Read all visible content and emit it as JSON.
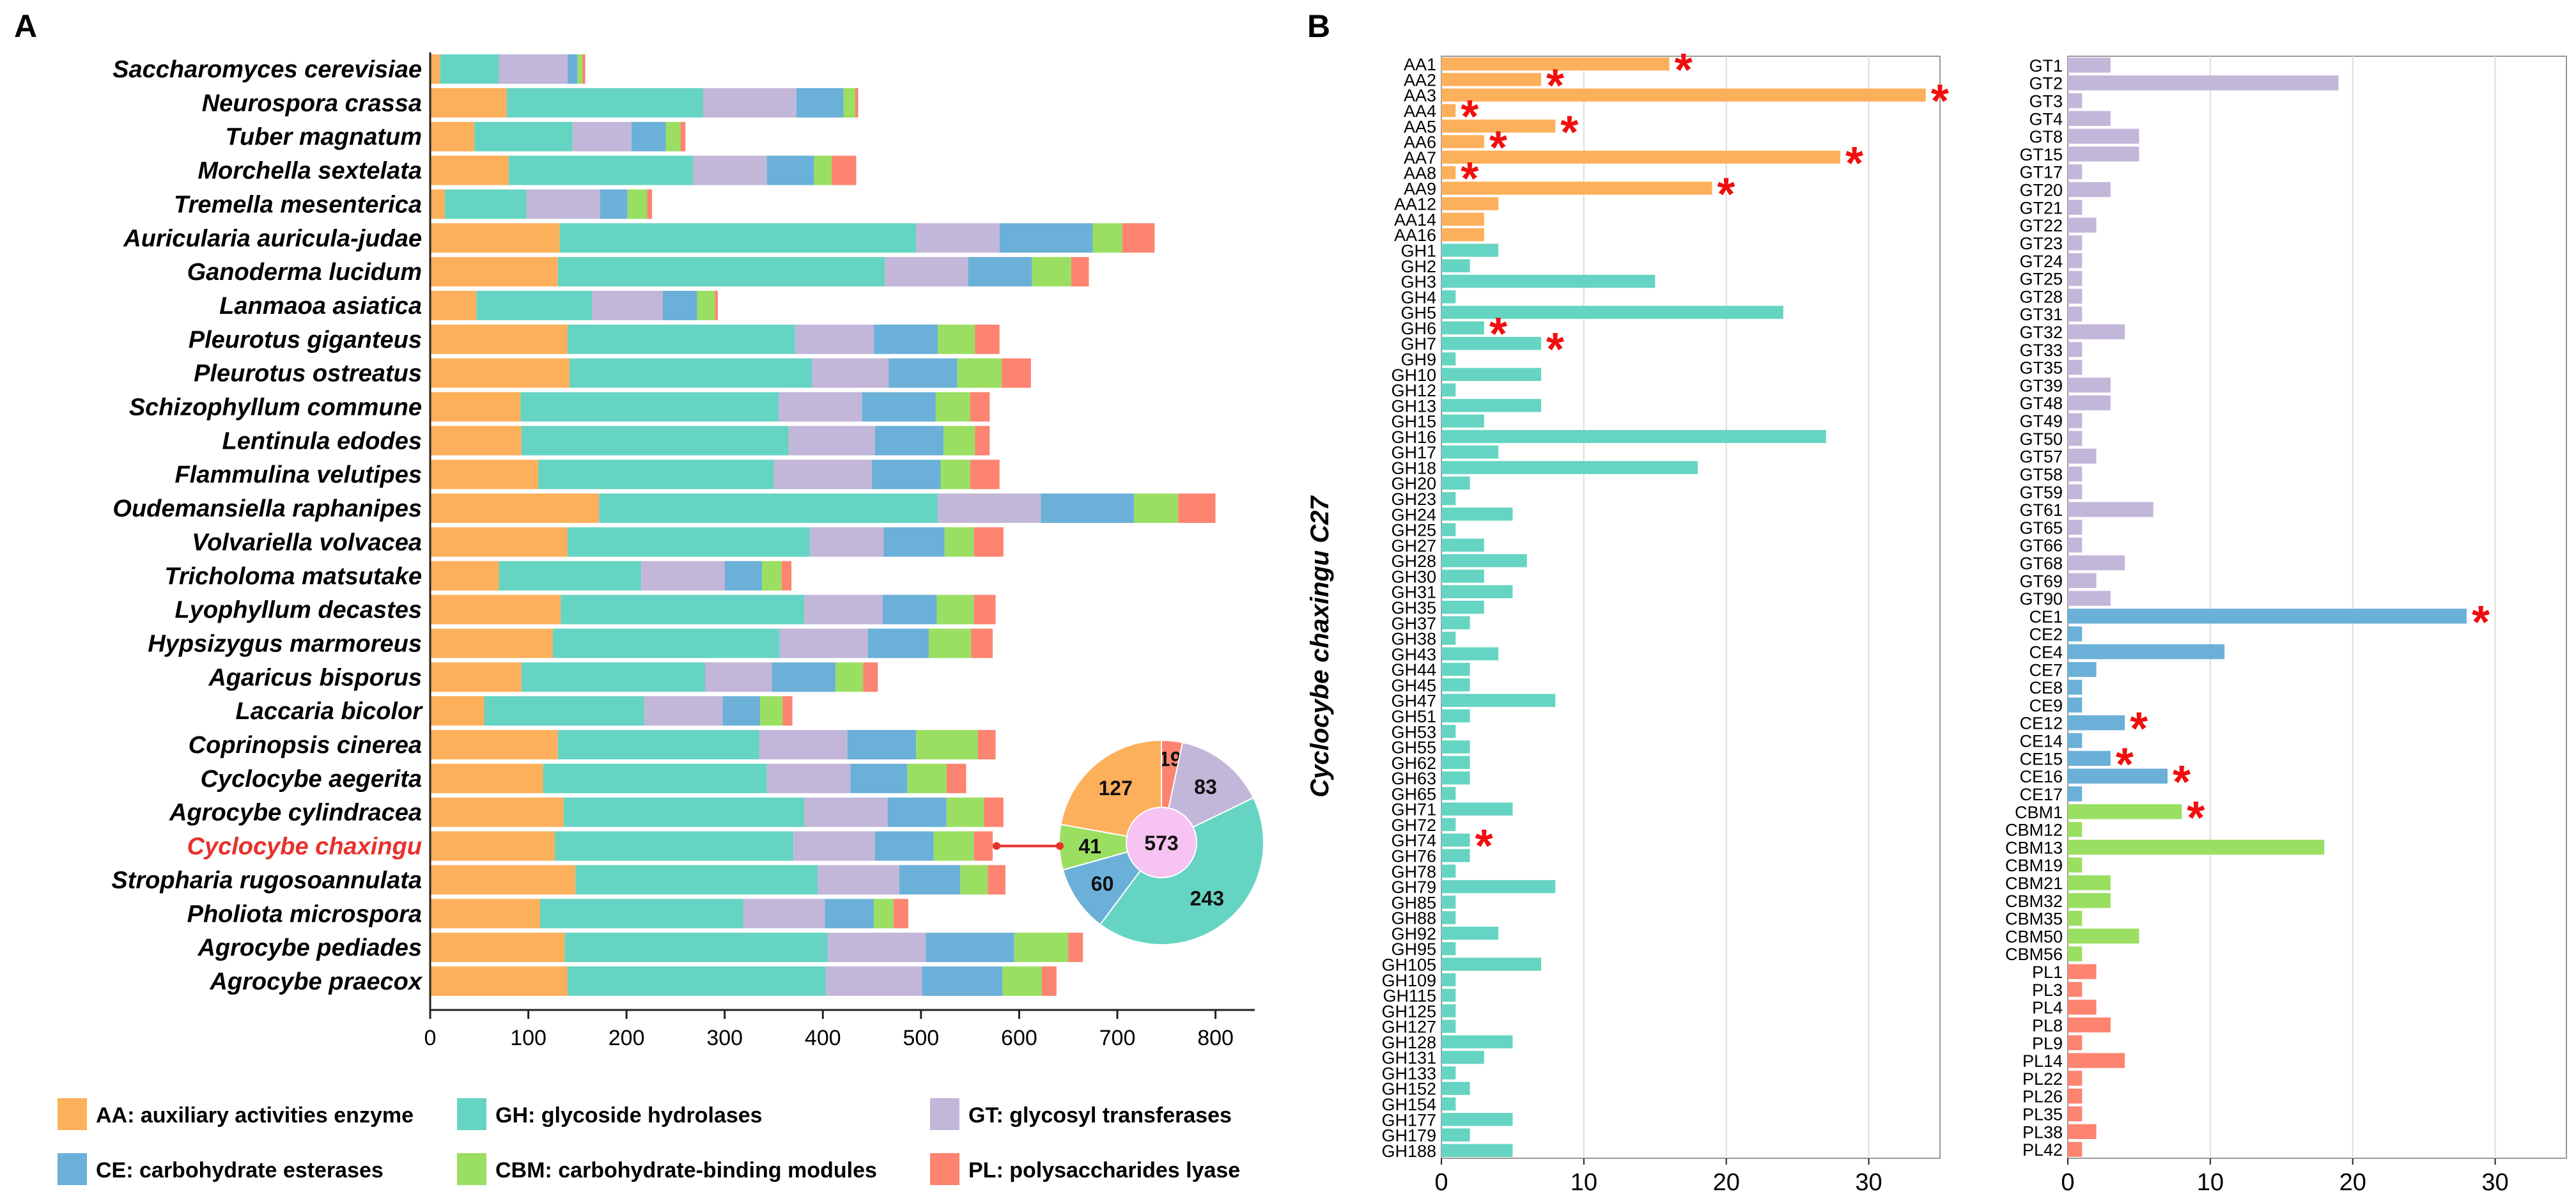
{
  "panels": {
    "a": "A",
    "b": "B"
  },
  "colors": {
    "AA": "#FDB05B",
    "GH": "#66D4C2",
    "GT": "#C2B6D9",
    "CE": "#6BB0D8",
    "CBM": "#9ADF62",
    "PL": "#FC8471",
    "highlight": "#E8312C",
    "star": "#F00E0E",
    "axis": "#222222",
    "grid": "#DDDDDD"
  },
  "chart_data": [
    {
      "type": "bar",
      "orientation": "horizontal",
      "stacked": true,
      "xlim": [
        0,
        840
      ],
      "xticks": [
        0,
        100,
        200,
        300,
        400,
        500,
        600,
        700,
        800
      ],
      "highlight_species": "Cyclocybe chaxingu",
      "categories": [
        "Saccharomyces cerevisiae",
        "Neurospora crassa",
        "Tuber magnatum",
        "Morchella sextelata",
        "Tremella mesenterica",
        "Auricularia auricula-judae",
        "Ganoderma lucidum",
        "Lanmaoa asiatica",
        "Pleurotus giganteus",
        "Pleurotus ostreatus",
        "Schizophyllum commune",
        "Lentinula edodes",
        "Flammulina velutipes",
        "Oudemansiella raphanipes",
        "Volvariella volvacea",
        "Tricholoma matsutake",
        "Lyophyllum decastes",
        "Hypsizygus marmoreus",
        "Agaricus bisporus",
        "Laccaria bicolor",
        "Coprinopsis cinerea",
        "Cyclocybe aegerita",
        "Agrocybe cylindracea",
        "Cyclocybe chaxingu",
        "Stropharia rugosoannulata",
        "Pholiota microspora",
        "Agrocybe pediades",
        "Agrocybe praecox"
      ],
      "series": [
        {
          "name": "AA",
          "values": [
            10,
            78,
            45,
            80,
            15,
            132,
            130,
            47,
            140,
            142,
            92,
            93,
            110,
            172,
            140,
            70,
            133,
            125,
            93,
            55,
            130,
            115,
            136,
            127,
            148,
            112,
            137,
            140
          ]
        },
        {
          "name": "GH",
          "values": [
            60,
            200,
            100,
            188,
            83,
            363,
            333,
            118,
            232,
            247,
            263,
            272,
            240,
            345,
            247,
            145,
            248,
            231,
            187,
            163,
            205,
            228,
            245,
            243,
            247,
            207,
            268,
            263
          ]
        },
        {
          "name": "GT",
          "values": [
            70,
            95,
            60,
            75,
            75,
            85,
            85,
            72,
            80,
            78,
            85,
            88,
            100,
            105,
            75,
            85,
            80,
            90,
            68,
            80,
            90,
            85,
            85,
            83,
            83,
            83,
            100,
            98
          ]
        },
        {
          "name": "CE",
          "values": [
            10,
            48,
            35,
            48,
            28,
            95,
            65,
            35,
            65,
            70,
            75,
            70,
            70,
            95,
            62,
            38,
            55,
            62,
            65,
            38,
            70,
            58,
            60,
            60,
            62,
            50,
            90,
            82
          ]
        },
        {
          "name": "CBM",
          "values": [
            5,
            12,
            15,
            18,
            20,
            30,
            40,
            18,
            38,
            45,
            35,
            32,
            30,
            45,
            30,
            20,
            38,
            43,
            28,
            23,
            63,
            40,
            38,
            41,
            28,
            20,
            55,
            40
          ]
        },
        {
          "name": "PL",
          "values": [
            3,
            3,
            5,
            25,
            5,
            33,
            18,
            3,
            25,
            30,
            20,
            15,
            30,
            38,
            30,
            10,
            22,
            22,
            15,
            10,
            18,
            20,
            20,
            19,
            18,
            15,
            15,
            15
          ]
        }
      ],
      "legend": [
        "AA: auxiliary activities enzyme",
        "GH: glycoside hydrolases",
        "GT: glycosyl transferases",
        "CE: carbohydrate esterases",
        "CBM: carbohydrate-binding modules",
        "PL: polysaccharides lyase"
      ],
      "legend_position": "bottom"
    },
    {
      "type": "pie",
      "title": "Cyclocybe chaxingu",
      "total": "573",
      "labels": [
        "AA",
        "GH",
        "CE",
        "CBM",
        "PL",
        "GT"
      ],
      "values": [
        127,
        243,
        60,
        41,
        19,
        83
      ]
    },
    {
      "type": "bar",
      "orientation": "horizontal",
      "ylabel": "Cyclocybe chaxingu C27",
      "xlim": [
        0,
        35
      ],
      "xticks": [
        0,
        10,
        20,
        30
      ],
      "categories": [
        "AA1",
        "AA2",
        "AA3",
        "AA4",
        "AA5",
        "AA6",
        "AA7",
        "AA8",
        "AA9",
        "AA12",
        "AA14",
        "AA16",
        "GH1",
        "GH2",
        "GH3",
        "GH4",
        "GH5",
        "GH6",
        "GH7",
        "GH9",
        "GH10",
        "GH12",
        "GH13",
        "GH15",
        "GH16",
        "GH17",
        "GH18",
        "GH20",
        "GH23",
        "GH24",
        "GH25",
        "GH27",
        "GH28",
        "GH30",
        "GH31",
        "GH35",
        "GH37",
        "GH38",
        "GH43",
        "GH44",
        "GH45",
        "GH47",
        "GH51",
        "GH53",
        "GH55",
        "GH62",
        "GH63",
        "GH65",
        "GH71",
        "GH72",
        "GH74",
        "GH76",
        "GH78",
        "GH79",
        "GH85",
        "GH88",
        "GH92",
        "GH95",
        "GH105",
        "GH109",
        "GH115",
        "GH125",
        "GH127",
        "GH128",
        "GH131",
        "GH133",
        "GH152",
        "GH154",
        "GH177",
        "GH179",
        "GH188"
      ],
      "values": [
        16,
        7,
        34,
        1,
        8,
        3,
        28,
        1,
        19,
        4,
        3,
        3,
        4,
        2,
        15,
        1,
        24,
        3,
        7,
        1,
        7,
        1,
        7,
        3,
        27,
        4,
        18,
        2,
        1,
        5,
        1,
        3,
        6,
        3,
        5,
        3,
        2,
        1,
        4,
        2,
        2,
        8,
        2,
        1,
        2,
        2,
        2,
        1,
        5,
        1,
        2,
        2,
        1,
        8,
        1,
        1,
        4,
        1,
        7,
        1,
        1,
        1,
        1,
        5,
        3,
        1,
        2,
        1,
        5,
        2,
        5
      ],
      "families": [
        "AA",
        "AA",
        "AA",
        "AA",
        "AA",
        "AA",
        "AA",
        "AA",
        "AA",
        "AA",
        "AA",
        "AA",
        "GH",
        "GH",
        "GH",
        "GH",
        "GH",
        "GH",
        "GH",
        "GH",
        "GH",
        "GH",
        "GH",
        "GH",
        "GH",
        "GH",
        "GH",
        "GH",
        "GH",
        "GH",
        "GH",
        "GH",
        "GH",
        "GH",
        "GH",
        "GH",
        "GH",
        "GH",
        "GH",
        "GH",
        "GH",
        "GH",
        "GH",
        "GH",
        "GH",
        "GH",
        "GH",
        "GH",
        "GH",
        "GH",
        "GH",
        "GH",
        "GH",
        "GH",
        "GH",
        "GH",
        "GH",
        "GH",
        "GH",
        "GH",
        "GH",
        "GH",
        "GH",
        "GH",
        "GH",
        "GH",
        "GH",
        "GH",
        "GH",
        "GH",
        "GH"
      ],
      "starred": [
        "AA1",
        "AA2",
        "AA3",
        "AA4",
        "AA5",
        "AA6",
        "AA7",
        "AA8",
        "AA9",
        "GH6",
        "GH7",
        "GH74"
      ],
      "star_symbol": "*"
    },
    {
      "type": "bar",
      "orientation": "horizontal",
      "xlim": [
        0,
        35
      ],
      "xticks": [
        0,
        10,
        20,
        30
      ],
      "categories": [
        "GT1",
        "GT2",
        "GT3",
        "GT4",
        "GT8",
        "GT15",
        "GT17",
        "GT20",
        "GT21",
        "GT22",
        "GT23",
        "GT24",
        "GT25",
        "GT28",
        "GT31",
        "GT32",
        "GT33",
        "GT35",
        "GT39",
        "GT48",
        "GT49",
        "GT50",
        "GT57",
        "GT58",
        "GT59",
        "GT61",
        "GT65",
        "GT66",
        "GT68",
        "GT69",
        "GT90",
        "CE1",
        "CE2",
        "CE4",
        "CE7",
        "CE8",
        "CE9",
        "CE12",
        "CE14",
        "CE15",
        "CE16",
        "CE17",
        "CBM1",
        "CBM12",
        "CBM13",
        "CBM19",
        "CBM21",
        "CBM32",
        "CBM35",
        "CBM50",
        "CBM56",
        "PL1",
        "PL3",
        "PL4",
        "PL8",
        "PL9",
        "PL14",
        "PL22",
        "PL26",
        "PL35",
        "PL38",
        "PL42"
      ],
      "values": [
        3,
        19,
        1,
        3,
        5,
        5,
        1,
        3,
        1,
        2,
        1,
        1,
        1,
        1,
        1,
        4,
        1,
        1,
        3,
        3,
        1,
        1,
        2,
        1,
        1,
        6,
        1,
        1,
        4,
        2,
        3,
        28,
        1,
        11,
        2,
        1,
        1,
        4,
        1,
        3,
        7,
        1,
        8,
        1,
        18,
        1,
        3,
        3,
        1,
        5,
        1,
        2,
        1,
        2,
        3,
        1,
        4,
        1,
        1,
        1,
        2,
        1
      ],
      "families": [
        "GT",
        "GT",
        "GT",
        "GT",
        "GT",
        "GT",
        "GT",
        "GT",
        "GT",
        "GT",
        "GT",
        "GT",
        "GT",
        "GT",
        "GT",
        "GT",
        "GT",
        "GT",
        "GT",
        "GT",
        "GT",
        "GT",
        "GT",
        "GT",
        "GT",
        "GT",
        "GT",
        "GT",
        "GT",
        "GT",
        "GT",
        "CE",
        "CE",
        "CE",
        "CE",
        "CE",
        "CE",
        "CE",
        "CE",
        "CE",
        "CE",
        "CE",
        "CBM",
        "CBM",
        "CBM",
        "CBM",
        "CBM",
        "CBM",
        "CBM",
        "CBM",
        "CBM",
        "PL",
        "PL",
        "PL",
        "PL",
        "PL",
        "PL",
        "PL",
        "PL",
        "PL",
        "PL",
        "PL"
      ],
      "starred": [
        "CE1",
        "CE12",
        "CE15",
        "CE16",
        "CBM1"
      ],
      "star_symbol": "*"
    }
  ]
}
